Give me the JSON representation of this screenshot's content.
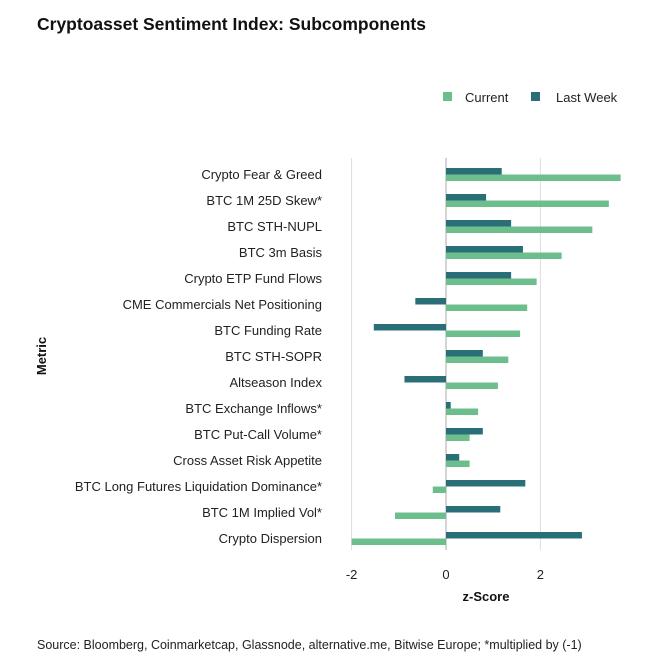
{
  "title": "Cryptoasset Sentiment Index: Subcomponents",
  "source": "Source: Bloomberg, Coinmarketcap, Glassnode, alternative.me, Bitwise Europe; *multiplied by (-1)",
  "colors": {
    "current": "#6cbf8c",
    "last_week": "#2a6f78",
    "grid": "#dddddd",
    "zero_line": "#aaaaaa"
  },
  "chart_data": {
    "type": "bar",
    "orientation": "horizontal",
    "title": "Cryptoasset Sentiment Index: Subcomponents",
    "xlabel": "z-Score",
    "ylabel": "Metric",
    "xlim": [
      -2.1,
      3.8
    ],
    "xticks": [
      -2,
      0,
      2
    ],
    "grid": "vertical",
    "legend_position": "top-right",
    "categories": [
      "Crypto Fear & Greed",
      "BTC 1M 25D Skew*",
      "BTC STH-NUPL",
      "BTC 3m Basis",
      "Crypto ETP Fund Flows",
      "CME Commercials Net Positioning",
      "BTC Funding Rate",
      "BTC STH-SOPR",
      "Altseason Index",
      "BTC Exchange Inflows*",
      "BTC Put-Call Volume*",
      "Cross Asset Risk Appetite",
      "BTC Long Futures Liquidation Dominance*",
      "BTC 1M Implied Vol*",
      "Crypto Dispersion"
    ],
    "series": [
      {
        "name": "Current",
        "values": [
          3.7,
          3.45,
          3.1,
          2.45,
          1.92,
          1.72,
          1.57,
          1.32,
          1.1,
          0.68,
          0.5,
          0.5,
          -0.28,
          -1.08,
          -2.0
        ]
      },
      {
        "name": "Last Week",
        "values": [
          1.18,
          0.85,
          1.38,
          1.63,
          1.38,
          -0.65,
          -1.53,
          0.78,
          -0.88,
          0.1,
          0.78,
          0.28,
          1.68,
          1.15,
          2.88
        ]
      }
    ]
  }
}
